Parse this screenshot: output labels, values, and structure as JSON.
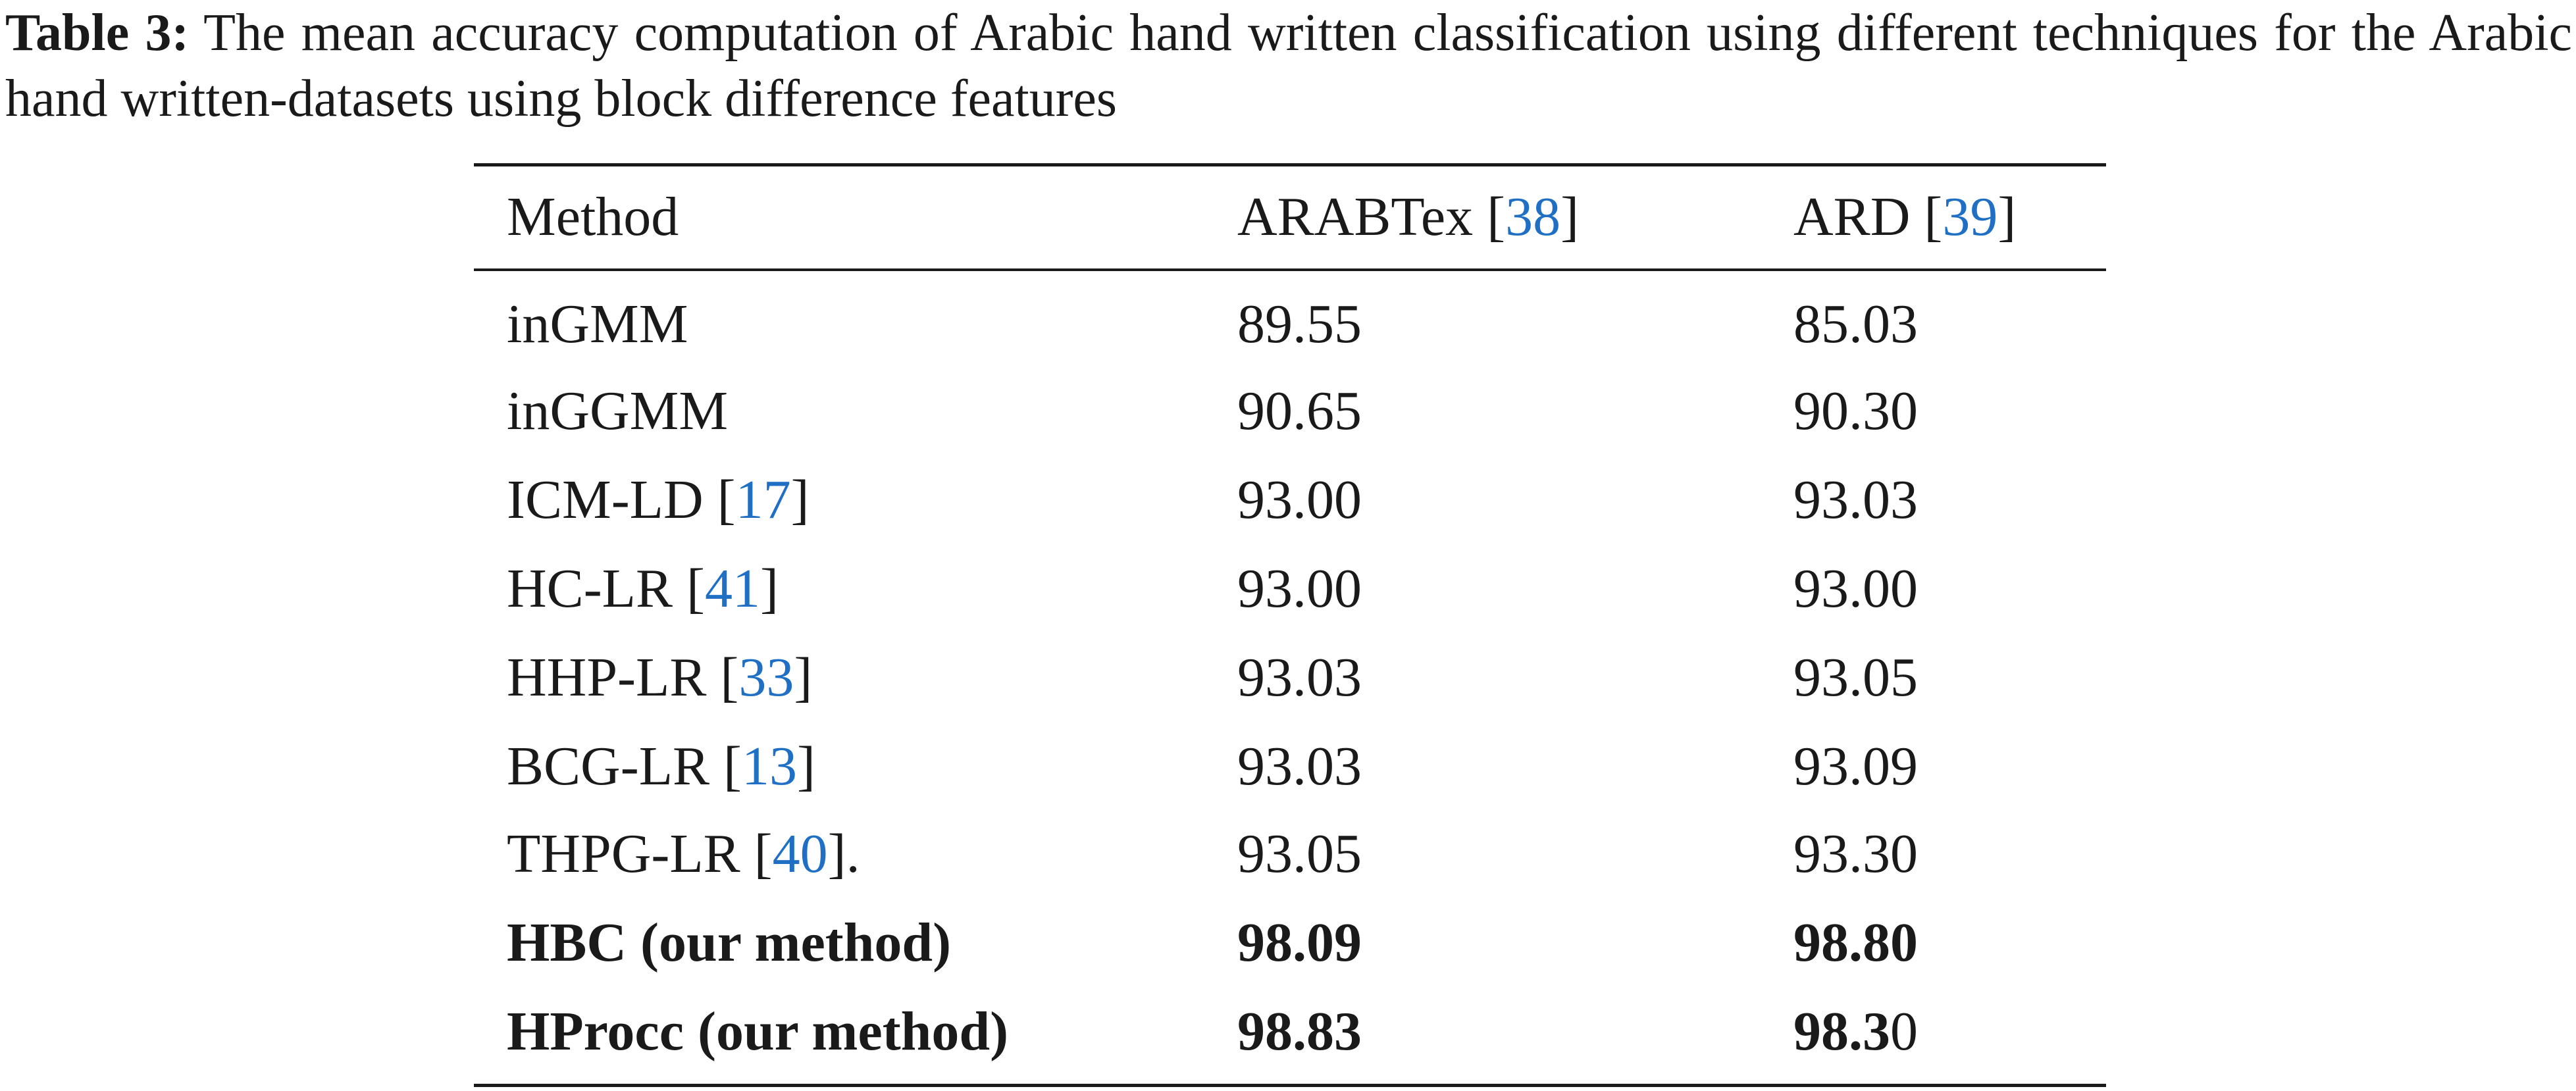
{
  "caption": {
    "label": "Table 3:",
    "text": "The mean accuracy computation of Arabic hand written classification using different techniques for the Arabic hand written-datasets using block difference features"
  },
  "table": {
    "header": [
      [
        {
          "text": "Method"
        }
      ],
      [
        {
          "text": "ARABTex ["
        },
        {
          "text": "38",
          "style": "link"
        },
        {
          "text": "]"
        }
      ],
      [
        {
          "text": "ARD ["
        },
        {
          "text": "39",
          "style": "link"
        },
        {
          "text": "]"
        }
      ]
    ],
    "rows": [
      [
        [
          {
            "text": "inGMM"
          }
        ],
        [
          {
            "text": "89.55"
          }
        ],
        [
          {
            "text": "85.03"
          }
        ]
      ],
      [
        [
          {
            "text": "inGGMM"
          }
        ],
        [
          {
            "text": "90.65"
          }
        ],
        [
          {
            "text": "90.30"
          }
        ]
      ],
      [
        [
          {
            "text": "ICM-LD ["
          },
          {
            "text": "17",
            "style": "link"
          },
          {
            "text": "]"
          }
        ],
        [
          {
            "text": "93.00"
          }
        ],
        [
          {
            "text": "93.03"
          }
        ]
      ],
      [
        [
          {
            "text": "HC-LR ["
          },
          {
            "text": "41",
            "style": "link"
          },
          {
            "text": "]"
          }
        ],
        [
          {
            "text": "93.00"
          }
        ],
        [
          {
            "text": "93.00"
          }
        ]
      ],
      [
        [
          {
            "text": "HHP-LR ["
          },
          {
            "text": "33",
            "style": "link"
          },
          {
            "text": "]"
          }
        ],
        [
          {
            "text": "93.03"
          }
        ],
        [
          {
            "text": "93.05"
          }
        ]
      ],
      [
        [
          {
            "text": "BCG-LR ["
          },
          {
            "text": "13",
            "style": "link"
          },
          {
            "text": "]"
          }
        ],
        [
          {
            "text": "93.03"
          }
        ],
        [
          {
            "text": "93.09"
          }
        ]
      ],
      [
        [
          {
            "text": "THPG-LR ["
          },
          {
            "text": "40",
            "style": "link"
          },
          {
            "text": "]."
          }
        ],
        [
          {
            "text": "93.05"
          }
        ],
        [
          {
            "text": "93.30"
          }
        ]
      ],
      [
        [
          {
            "text": "HBC (our method)",
            "style": "bold"
          }
        ],
        [
          {
            "text": "98.09",
            "style": "bold"
          }
        ],
        [
          {
            "text": "98.80",
            "style": "bold"
          }
        ]
      ],
      [
        [
          {
            "text": "HProcc (our method)",
            "style": "bold"
          }
        ],
        [
          {
            "text": "98.83",
            "style": "bold"
          }
        ],
        [
          {
            "text": "98.3",
            "style": "bold"
          },
          {
            "text": "0"
          }
        ]
      ]
    ]
  }
}
